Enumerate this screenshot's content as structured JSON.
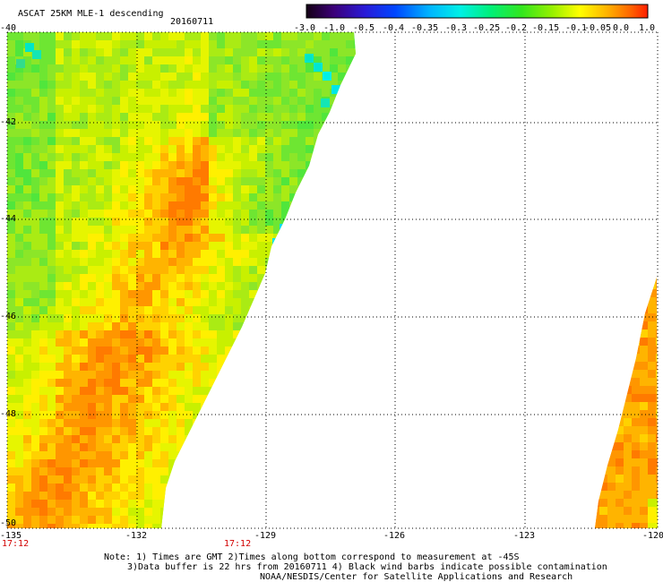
{
  "title": "ASCAT 25KM MLE-1 descending",
  "date": "20160711",
  "colorbar": {
    "labels": [
      "-3.0",
      "-1.0",
      "-0.5",
      "-0.4",
      "-0.35",
      "-0.3",
      "-0.25",
      "-0.2",
      "-0.15",
      "-0.1",
      "-0.05",
      "0.0",
      "1.0"
    ],
    "colors": [
      "#2a0038",
      "#3c0078",
      "#2a1ad6",
      "#0046ff",
      "#0096ff",
      "#00e0f0",
      "#00f0a0",
      "#14e61e",
      "#64f000",
      "#c8f000",
      "#ffdc00",
      "#ff8c00",
      "#ff2a00"
    ]
  },
  "map": {
    "lon_ticks": [
      "-135",
      "-132",
      "-129",
      "-126",
      "-123",
      "-120"
    ],
    "lat_ticks": [
      "-40",
      "-42",
      "-44",
      "-46",
      "-48",
      "-50"
    ],
    "lon_range": [
      -135,
      -120
    ],
    "lat_range": [
      -50,
      -40
    ]
  },
  "times": [
    "17:12",
    "17:12"
  ],
  "notes": [
    "Note: 1) Times are GMT 2)Times along bottom correspond to measurement at -45S",
    "3)Data buffer is 22 hrs from 20160711 4) Black wind barbs indicate possible contamination",
    "NOAA/NESDIS/Center for Satellite Applications and Research"
  ]
}
